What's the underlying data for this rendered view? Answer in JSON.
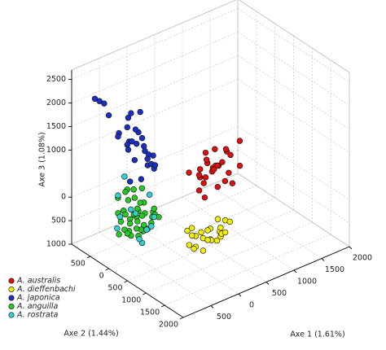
{
  "chart_data": {
    "type": "scatter3d",
    "x_label": "Axe 1 (1.61%)",
    "y_label": "Axe 2 (1.44%)",
    "z_label": "Axe 3 (1.08%)",
    "xlim": [
      -1000,
      2000
    ],
    "ylim": [
      -1000,
      2000
    ],
    "zlim": [
      -1000,
      2700
    ],
    "xticks": [
      {
        "value": -500,
        "label": "500"
      },
      0,
      500,
      1000,
      1500,
      2000
    ],
    "yticks": [
      {
        "value": -500,
        "label": "500"
      },
      0,
      500,
      1000,
      1500,
      2000
    ],
    "zticks": [
      2500,
      2000,
      1500,
      1000,
      0,
      {
        "value": -500,
        "label": "500"
      },
      {
        "value": -1000,
        "label": "1000"
      }
    ],
    "grid": true,
    "legend": "lower left",
    "series": [
      {
        "name": "A. australis",
        "color": "#dd1010",
        "x": [
          1200,
          1350,
          1050,
          1500,
          900,
          1250,
          1400,
          1100,
          1600,
          950,
          1300,
          1150,
          1450,
          1000,
          1250,
          1700,
          850,
          1350,
          1200,
          1050,
          1500,
          1300,
          1100,
          1400,
          1250,
          1150,
          1600,
          1000
        ],
        "y": [
          -500,
          -450,
          -600,
          -550,
          -400,
          -700,
          -350,
          -500,
          -600,
          -450,
          -300,
          -650,
          -500,
          -550,
          -400,
          -500,
          -600,
          -700,
          -350,
          -450,
          -400,
          -550,
          -300,
          -650,
          -500,
          -600,
          -350,
          -400
        ],
        "z": [
          -300,
          -150,
          -400,
          -50,
          -500,
          -250,
          -350,
          0,
          -200,
          -100,
          -450,
          -600,
          50,
          -300,
          -150,
          100,
          -200,
          -400,
          -550,
          200,
          -650,
          -250,
          -100,
          -350,
          150,
          -450,
          -300,
          -700
        ]
      },
      {
        "name": "A. dieffenbachi",
        "color": "#f2f000",
        "x": [
          500,
          700,
          300,
          900,
          200,
          600,
          400,
          800,
          1000,
          350,
          550,
          750,
          450,
          650,
          250,
          850,
          500,
          950,
          300,
          700,
          600,
          400,
          800,
          550
        ],
        "y": [
          300,
          200,
          400,
          100,
          500,
          350,
          250,
          300,
          150,
          100,
          450,
          400,
          500,
          200,
          300,
          250,
          0,
          350,
          600,
          500,
          100,
          150,
          450,
          600
        ],
        "z": [
          -950,
          -900,
          -980,
          -850,
          -920,
          -1000,
          -880,
          -960,
          -900,
          -820,
          -940,
          -990,
          -860,
          -910,
          -970,
          -930,
          -890,
          -800,
          -960,
          -850,
          -980,
          -920,
          -900,
          -870
        ]
      },
      {
        "name": "A. japonica",
        "color": "#1a2fc0",
        "x": [
          -500,
          -300,
          -700,
          -400,
          -600,
          -200,
          -800,
          -900,
          -850,
          -500,
          -350,
          -650,
          -450,
          -550,
          -250,
          -750,
          -500,
          -400,
          -600,
          -300,
          -700,
          -450,
          -550,
          -350,
          -650,
          -200,
          -500,
          -400,
          -600,
          -950
        ],
        "y": [
          0,
          -100,
          100,
          -200,
          200,
          0,
          -300,
          -400,
          -350,
          300,
          -250,
          50,
          150,
          -150,
          100,
          -100,
          -250,
          250,
          0,
          200,
          -200,
          50,
          -50,
          100,
          0,
          -150,
          150,
          -50,
          -100,
          -450
        ],
        "z": [
          1400,
          1200,
          1600,
          900,
          1800,
          1000,
          2000,
          2300,
          2250,
          1100,
          1500,
          700,
          1300,
          1900,
          800,
          1700,
          1250,
          1050,
          2100,
          950,
          1550,
          650,
          1450,
          1150,
          1350,
          850,
          1600,
          2000,
          1750,
          2350
        ]
      },
      {
        "name": "A. anguilla",
        "color": "#22cc22",
        "x": [
          -500,
          -300,
          -700,
          -400,
          -600,
          -200,
          -800,
          -500,
          -350,
          -650,
          -450,
          -550,
          -250,
          -750,
          -500,
          -400,
          -600,
          -300,
          -700,
          -500,
          -450,
          -550,
          -350,
          -650,
          -500,
          -200,
          -800,
          -400,
          -600,
          -500,
          -300,
          -700,
          -450,
          -550,
          -500,
          -350,
          -650,
          -250,
          -750,
          -500
        ],
        "y": [
          0,
          -100,
          100,
          -200,
          200,
          0,
          -50,
          300,
          -300,
          50,
          150,
          -150,
          100,
          -100,
          -250,
          250,
          0,
          200,
          -200,
          50,
          -50,
          100,
          0,
          -100,
          150,
          -300,
          200,
          50,
          -150,
          -350,
          300,
          0,
          -250,
          250,
          100,
          -100,
          150,
          50,
          -50,
          0
        ],
        "z": [
          -150,
          0,
          -300,
          100,
          -400,
          -200,
          50,
          -250,
          200,
          -100,
          -350,
          150,
          -50,
          -450,
          300,
          -200,
          -500,
          -100,
          250,
          0,
          -300,
          100,
          -150,
          -400,
          -50,
          150,
          -250,
          -350,
          350,
          -200,
          -100,
          0,
          -450,
          -300,
          200,
          -550,
          50,
          -250,
          -150,
          -400
        ]
      },
      {
        "name": "A. rostrata",
        "color": "#33d0d0",
        "x": [
          -700,
          -300,
          -600,
          -800,
          -400,
          -250,
          -650,
          -500,
          -750,
          -350,
          -550,
          -450
        ],
        "y": [
          -200,
          100,
          300,
          0,
          -300,
          -100,
          200,
          350,
          -150,
          250,
          -250,
          0
        ],
        "z": [
          300,
          -400,
          -500,
          0,
          -200,
          -600,
          100,
          500,
          -350,
          -100,
          600,
          -650
        ]
      }
    ]
  }
}
